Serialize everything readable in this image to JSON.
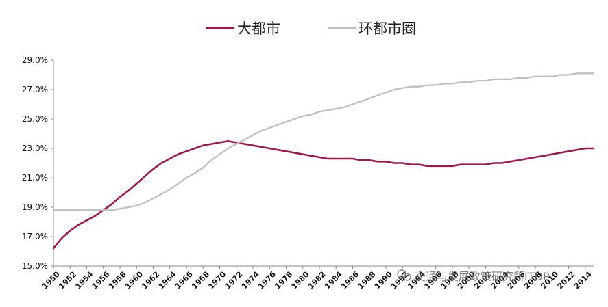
{
  "chart_data": {
    "type": "line",
    "title": "",
    "xlabel": "",
    "ylabel": "",
    "legend_position": "top-center",
    "grid": false,
    "ylim": [
      15.0,
      29.0
    ],
    "xlim": [
      1950,
      2015
    ],
    "y_ticks": [
      "15.0%",
      "17.0%",
      "19.0%",
      "21.0%",
      "23.0%",
      "25.0%",
      "27.0%",
      "29.0%"
    ],
    "x_ticks": [
      "1950",
      "1952",
      "1954",
      "1956",
      "1958",
      "1960",
      "1962",
      "1964",
      "1966",
      "1968",
      "1970",
      "1972",
      "1974",
      "1976",
      "1978",
      "1980",
      "1982",
      "1984",
      "1986",
      "1988",
      "1990",
      "1992",
      "1994",
      "1996",
      "1998",
      "2000",
      "2002",
      "2004",
      "2006",
      "2008",
      "2010",
      "2012",
      "2014"
    ],
    "series": [
      {
        "name": "大都市",
        "color": "#A0174D",
        "x": [
          1950,
          1951,
          1952,
          1953,
          1954,
          1955,
          1956,
          1957,
          1958,
          1959,
          1960,
          1961,
          1962,
          1963,
          1964,
          1965,
          1966,
          1967,
          1968,
          1969,
          1970,
          1971,
          1972,
          1973,
          1974,
          1975,
          1976,
          1977,
          1978,
          1979,
          1980,
          1981,
          1982,
          1983,
          1984,
          1985,
          1986,
          1987,
          1988,
          1989,
          1990,
          1991,
          1992,
          1993,
          1994,
          1995,
          1996,
          1997,
          1998,
          1999,
          2000,
          2001,
          2002,
          2003,
          2004,
          2005,
          2006,
          2007,
          2008,
          2009,
          2010,
          2011,
          2012,
          2013,
          2014,
          2015
        ],
        "values": [
          16.2,
          16.9,
          17.4,
          17.8,
          18.1,
          18.4,
          18.8,
          19.2,
          19.7,
          20.1,
          20.6,
          21.1,
          21.6,
          22.0,
          22.3,
          22.6,
          22.8,
          23.0,
          23.2,
          23.3,
          23.4,
          23.5,
          23.4,
          23.3,
          23.2,
          23.1,
          23.0,
          22.9,
          22.8,
          22.7,
          22.6,
          22.5,
          22.4,
          22.3,
          22.3,
          22.3,
          22.3,
          22.2,
          22.2,
          22.1,
          22.1,
          22.0,
          22.0,
          21.9,
          21.9,
          21.8,
          21.8,
          21.8,
          21.8,
          21.9,
          21.9,
          21.9,
          21.9,
          22.0,
          22.0,
          22.1,
          22.2,
          22.3,
          22.4,
          22.5,
          22.6,
          22.7,
          22.8,
          22.9,
          23.0,
          23.0
        ]
      },
      {
        "name": "环都市圈",
        "color": "#BFBFBF",
        "x": [
          1950,
          1951,
          1952,
          1953,
          1954,
          1955,
          1956,
          1957,
          1958,
          1959,
          1960,
          1961,
          1962,
          1963,
          1964,
          1965,
          1966,
          1967,
          1968,
          1969,
          1970,
          1971,
          1972,
          1973,
          1974,
          1975,
          1976,
          1977,
          1978,
          1979,
          1980,
          1981,
          1982,
          1983,
          1984,
          1985,
          1986,
          1987,
          1988,
          1989,
          1990,
          1991,
          1992,
          1993,
          1994,
          1995,
          1996,
          1997,
          1998,
          1999,
          2000,
          2001,
          2002,
          2003,
          2004,
          2005,
          2006,
          2007,
          2008,
          2009,
          2010,
          2011,
          2012,
          2013,
          2014,
          2015
        ],
        "values": [
          18.8,
          18.8,
          18.8,
          18.8,
          18.8,
          18.8,
          18.8,
          18.8,
          18.9,
          19.0,
          19.1,
          19.3,
          19.6,
          19.9,
          20.2,
          20.6,
          21.0,
          21.3,
          21.7,
          22.2,
          22.6,
          23.0,
          23.3,
          23.6,
          23.9,
          24.2,
          24.4,
          24.6,
          24.8,
          25.0,
          25.2,
          25.3,
          25.5,
          25.6,
          25.7,
          25.8,
          26.0,
          26.2,
          26.4,
          26.6,
          26.8,
          27.0,
          27.1,
          27.2,
          27.2,
          27.3,
          27.3,
          27.4,
          27.4,
          27.5,
          27.5,
          27.6,
          27.6,
          27.7,
          27.7,
          27.7,
          27.8,
          27.8,
          27.9,
          27.9,
          27.9,
          28.0,
          28.0,
          28.1,
          28.1,
          28.1
        ]
      }
    ]
  },
  "watermark": {
    "text": "交通与发展政策研究所ITDP",
    "icon": "wechat-icon"
  }
}
